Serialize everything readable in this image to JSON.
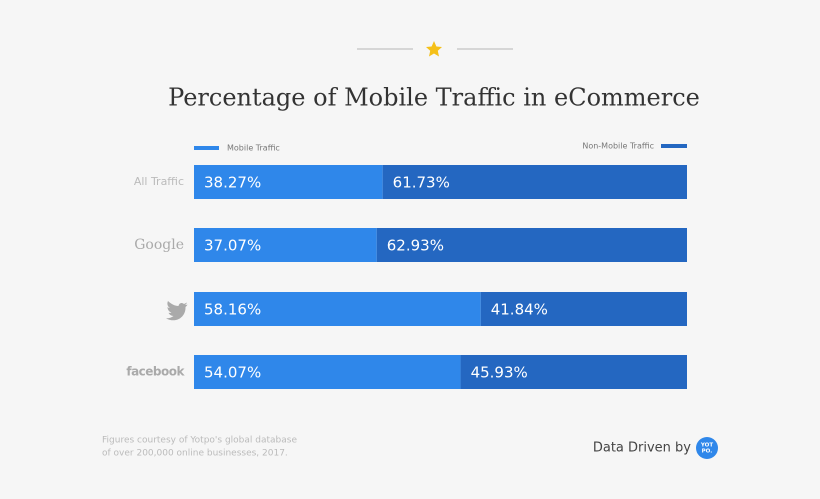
{
  "chart_data": {
    "type": "stacked-bar",
    "title": "Percentage of Mobile Traffic in eCommerce",
    "categories": [
      "All Traffic",
      "Google",
      null,
      "facebook"
    ],
    "series": [
      {
        "name": "Mobile Traffic",
        "color": "#2f87ea",
        "values": [
          38.27,
          37.07,
          58.16,
          54.07
        ],
        "value_labels": [
          "38.27%",
          "37.07%",
          "58.16%",
          "54.07%"
        ]
      },
      {
        "name": "Non-Mobile Traffic",
        "color": "#2467c1",
        "values": [
          61.73,
          62.93,
          41.84,
          45.93
        ],
        "value_labels": [
          "61.73%",
          "62.93%",
          "41.84%",
          "45.93%"
        ]
      }
    ],
    "note": [
      "Figures courtesy of Yotpo's global database",
      "of over 200,000 online businesses, 2017."
    ],
    "credit": "Data Driven by",
    "logo": [
      "YOT",
      "PO."
    ]
  }
}
